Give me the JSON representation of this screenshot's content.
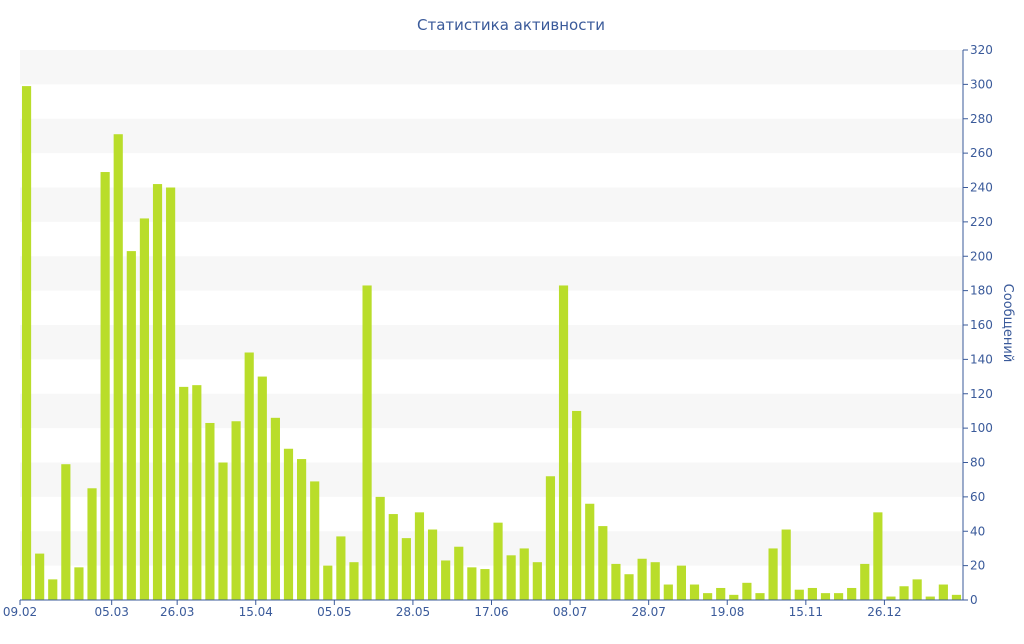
{
  "chart_data": {
    "type": "bar",
    "title": "Статистика активности",
    "ylabel": "Сообщений",
    "xlabel": "",
    "ylim": [
      0,
      320
    ],
    "y_ticks": [
      0,
      20,
      40,
      60,
      80,
      100,
      120,
      140,
      160,
      180,
      200,
      220,
      240,
      260,
      280,
      300,
      320
    ],
    "y_axis_side": "right",
    "x_tick_labels": [
      {
        "index": 0,
        "label": "09.02"
      },
      {
        "index": 7,
        "label": "05.03"
      },
      {
        "index": 12,
        "label": "26.03"
      },
      {
        "index": 18,
        "label": "15.04"
      },
      {
        "index": 24,
        "label": "05.05"
      },
      {
        "index": 30,
        "label": "28.05"
      },
      {
        "index": 36,
        "label": "17.06"
      },
      {
        "index": 42,
        "label": "08.07"
      },
      {
        "index": 48,
        "label": "28.07"
      },
      {
        "index": 54,
        "label": "19.08"
      },
      {
        "index": 60,
        "label": "15.11"
      },
      {
        "index": 66,
        "label": "26.12"
      }
    ],
    "values": [
      299,
      27,
      12,
      79,
      19,
      65,
      249,
      271,
      203,
      222,
      242,
      240,
      124,
      125,
      103,
      80,
      104,
      144,
      130,
      106,
      88,
      82,
      69,
      20,
      37,
      22,
      183,
      60,
      50,
      36,
      51,
      41,
      23,
      31,
      19,
      18,
      45,
      26,
      30,
      22,
      72,
      183,
      110,
      56,
      43,
      21,
      15,
      24,
      22,
      9,
      20,
      9,
      4,
      7,
      3,
      10,
      4,
      30,
      41,
      6,
      7,
      4,
      4,
      7,
      21,
      51,
      2,
      8,
      12,
      2,
      9,
      3
    ],
    "bar_color": "#b9dd2a",
    "text_color": "#3a5a9a",
    "band_color": "#f7f7f7",
    "grid": true
  }
}
